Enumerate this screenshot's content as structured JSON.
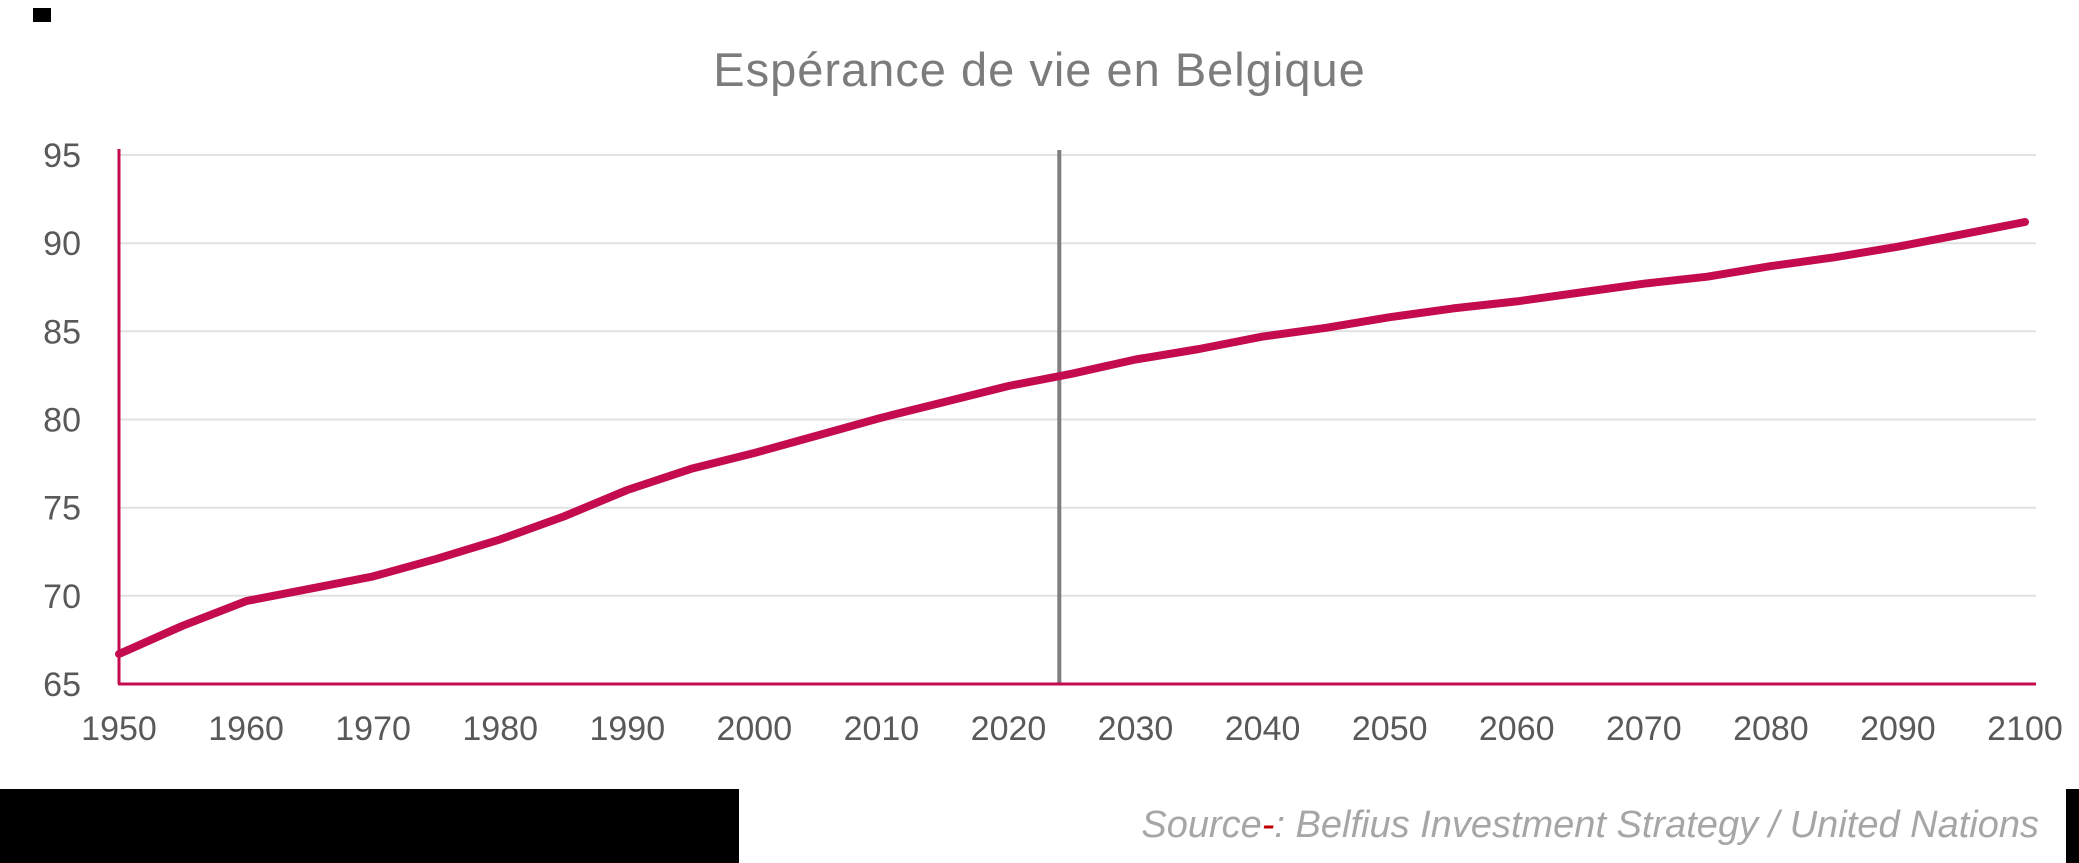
{
  "title": "Espérance de vie en Belgique",
  "source": {
    "prefix": "Source",
    "dash": "-",
    "rest": ": Belfius Investment Strategy / United Nations"
  },
  "chart_data": {
    "type": "line",
    "title": "Espérance de vie en Belgique",
    "xlabel": "",
    "ylabel": "",
    "xlim": [
      1950,
      2100
    ],
    "ylim": [
      65,
      95
    ],
    "x_ticks": [
      1950,
      1960,
      1970,
      1980,
      1990,
      2000,
      2010,
      2020,
      2030,
      2040,
      2050,
      2060,
      2070,
      2080,
      2090,
      2100
    ],
    "y_ticks": [
      65,
      70,
      75,
      80,
      85,
      90,
      95
    ],
    "grid": "horizontal",
    "legend": "none",
    "marker_year": 2024,
    "x": [
      1950,
      1955,
      1960,
      1965,
      1970,
      1975,
      1980,
      1985,
      1990,
      1995,
      2000,
      2005,
      2010,
      2015,
      2020,
      2025,
      2030,
      2035,
      2040,
      2045,
      2050,
      2055,
      2060,
      2065,
      2070,
      2075,
      2080,
      2085,
      2090,
      2095,
      2100
    ],
    "series": [
      {
        "name": "Espérance de vie",
        "values": [
          66.7,
          68.3,
          69.7,
          70.4,
          71.1,
          72.1,
          73.2,
          74.5,
          76.0,
          77.2,
          78.1,
          79.1,
          80.1,
          81.0,
          81.9,
          82.6,
          83.4,
          84.0,
          84.7,
          85.2,
          85.8,
          86.3,
          86.7,
          87.2,
          87.7,
          88.1,
          88.7,
          89.2,
          89.8,
          90.5,
          91.2
        ]
      }
    ],
    "colors": {
      "line": "#C30B4E",
      "axis": "#C30B4E",
      "grid": "#E2E2E2",
      "marker": "#7F7F7F",
      "tick_labels": "#595959",
      "title": "#7C7C7C",
      "source_text": "#A6A6A6",
      "source_dash": "#C00000"
    }
  }
}
